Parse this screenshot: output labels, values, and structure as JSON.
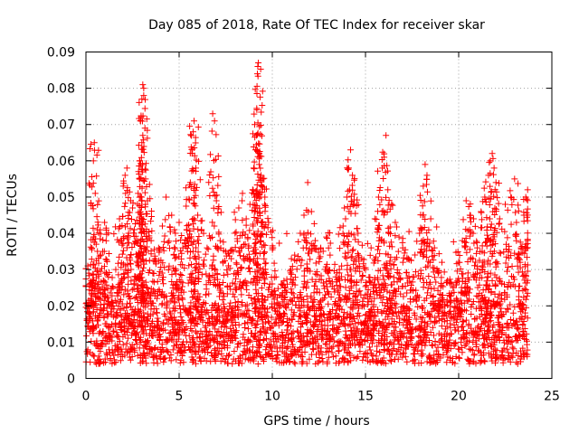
{
  "chart_data": {
    "type": "scatter",
    "title": "Day 085 of 2018, Rate Of TEC Index for receiver skar",
    "xlabel": "GPS time / hours",
    "ylabel": "ROTI / TECUs",
    "xlim": [
      0,
      25
    ],
    "ylim": [
      0,
      0.09
    ],
    "grid": true,
    "marker": "+",
    "color": "#ff0000",
    "x_ticks": [
      {
        "value": 0,
        "label": "0"
      },
      {
        "value": 5,
        "label": "5"
      },
      {
        "value": 10,
        "label": "10"
      },
      {
        "value": 15,
        "label": "15"
      },
      {
        "value": 20,
        "label": "20"
      },
      {
        "value": 25,
        "label": "25"
      }
    ],
    "y_ticks": [
      {
        "value": 0,
        "label": "0"
      },
      {
        "value": 0.01,
        "label": "0.01"
      },
      {
        "value": 0.02,
        "label": "0.02"
      },
      {
        "value": 0.03,
        "label": "0.03"
      },
      {
        "value": 0.04,
        "label": "0.04"
      },
      {
        "value": 0.05,
        "label": "0.05"
      },
      {
        "value": 0.06,
        "label": "0.06"
      },
      {
        "value": 0.07,
        "label": "0.07"
      },
      {
        "value": 0.08,
        "label": "0.08"
      },
      {
        "value": 0.09,
        "label": "0.09"
      }
    ],
    "series": [
      {
        "name": "ROTI",
        "x_range": [
          0,
          23.7
        ],
        "baseline_range": [
          0.004,
          0.02
        ],
        "points": [
          [
            0.05,
            0.016
          ],
          [
            0.1,
            0.031
          ],
          [
            0.15,
            0.029
          ],
          [
            0.3,
            0.021
          ],
          [
            0.4,
            0.06
          ],
          [
            0.45,
            0.065
          ],
          [
            0.5,
            0.051
          ],
          [
            0.55,
            0.037
          ],
          [
            0.6,
            0.041
          ],
          [
            0.8,
            0.034
          ],
          [
            0.9,
            0.035
          ],
          [
            1.0,
            0.043
          ],
          [
            1.2,
            0.028
          ],
          [
            1.4,
            0.021
          ],
          [
            1.6,
            0.03
          ],
          [
            1.8,
            0.044
          ],
          [
            2.0,
            0.053
          ],
          [
            2.1,
            0.056
          ],
          [
            2.2,
            0.058
          ],
          [
            2.4,
            0.049
          ],
          [
            2.5,
            0.047
          ],
          [
            2.6,
            0.041
          ],
          [
            2.8,
            0.051
          ],
          [
            2.9,
            0.055
          ],
          [
            3.0,
            0.065
          ],
          [
            3.05,
            0.067
          ],
          [
            3.0,
            0.077
          ],
          [
            3.05,
            0.081
          ],
          [
            3.1,
            0.08
          ],
          [
            3.1,
            0.078
          ],
          [
            3.2,
            0.055
          ],
          [
            3.3,
            0.049
          ],
          [
            3.5,
            0.038
          ],
          [
            3.7,
            0.033
          ],
          [
            3.9,
            0.036
          ],
          [
            4.1,
            0.042
          ],
          [
            4.3,
            0.05
          ],
          [
            4.6,
            0.045
          ],
          [
            4.8,
            0.04
          ],
          [
            5.0,
            0.043
          ],
          [
            5.2,
            0.036
          ],
          [
            5.4,
            0.041
          ],
          [
            5.6,
            0.054
          ],
          [
            5.7,
            0.062
          ],
          [
            5.75,
            0.068
          ],
          [
            5.8,
            0.071
          ],
          [
            5.9,
            0.058
          ],
          [
            6.0,
            0.045
          ],
          [
            6.2,
            0.041
          ],
          [
            6.5,
            0.036
          ],
          [
            6.8,
            0.073
          ],
          [
            6.9,
            0.071
          ],
          [
            7.0,
            0.049
          ],
          [
            7.2,
            0.038
          ],
          [
            7.5,
            0.035
          ],
          [
            7.8,
            0.033
          ],
          [
            8.0,
            0.04
          ],
          [
            8.2,
            0.047
          ],
          [
            8.4,
            0.051
          ],
          [
            8.6,
            0.044
          ],
          [
            8.8,
            0.048
          ],
          [
            9.0,
            0.058
          ],
          [
            9.1,
            0.063
          ],
          [
            9.15,
            0.067
          ],
          [
            9.2,
            0.084
          ],
          [
            9.22,
            0.086
          ],
          [
            9.25,
            0.087
          ],
          [
            9.3,
            0.062
          ],
          [
            9.4,
            0.056
          ],
          [
            9.5,
            0.055
          ],
          [
            9.6,
            0.05
          ],
          [
            9.8,
            0.043
          ],
          [
            10.0,
            0.036
          ],
          [
            10.2,
            0.028
          ],
          [
            10.5,
            0.023
          ],
          [
            10.8,
            0.026
          ],
          [
            11.0,
            0.03
          ],
          [
            11.2,
            0.034
          ],
          [
            11.5,
            0.04
          ],
          [
            11.7,
            0.045
          ],
          [
            11.9,
            0.054
          ],
          [
            12.1,
            0.046
          ],
          [
            12.3,
            0.038
          ],
          [
            12.6,
            0.036
          ],
          [
            12.9,
            0.039
          ],
          [
            13.1,
            0.034
          ],
          [
            13.4,
            0.028
          ],
          [
            13.6,
            0.03
          ],
          [
            13.8,
            0.042
          ],
          [
            14.0,
            0.05
          ],
          [
            14.1,
            0.058
          ],
          [
            14.2,
            0.063
          ],
          [
            14.3,
            0.056
          ],
          [
            14.4,
            0.048
          ],
          [
            14.6,
            0.04
          ],
          [
            14.8,
            0.033
          ],
          [
            15.0,
            0.03
          ],
          [
            15.3,
            0.036
          ],
          [
            15.5,
            0.044
          ],
          [
            15.7,
            0.05
          ],
          [
            15.9,
            0.058
          ],
          [
            16.0,
            0.061
          ],
          [
            16.1,
            0.067
          ],
          [
            16.2,
            0.052
          ],
          [
            16.4,
            0.048
          ],
          [
            16.6,
            0.043
          ],
          [
            16.8,
            0.039
          ],
          [
            17.0,
            0.036
          ],
          [
            17.3,
            0.033
          ],
          [
            17.6,
            0.028
          ],
          [
            17.9,
            0.04
          ],
          [
            18.1,
            0.053
          ],
          [
            18.2,
            0.059
          ],
          [
            18.3,
            0.056
          ],
          [
            18.5,
            0.044
          ],
          [
            18.7,
            0.036
          ],
          [
            18.9,
            0.029
          ],
          [
            19.1,
            0.032
          ],
          [
            19.4,
            0.027
          ],
          [
            19.7,
            0.025
          ],
          [
            20.0,
            0.032
          ],
          [
            20.2,
            0.038
          ],
          [
            20.4,
            0.049
          ],
          [
            20.6,
            0.045
          ],
          [
            20.8,
            0.044
          ],
          [
            21.0,
            0.036
          ],
          [
            21.2,
            0.046
          ],
          [
            21.4,
            0.05
          ],
          [
            21.6,
            0.056
          ],
          [
            21.7,
            0.06
          ],
          [
            21.8,
            0.062
          ],
          [
            21.9,
            0.058
          ],
          [
            22.0,
            0.054
          ],
          [
            22.2,
            0.044
          ],
          [
            22.5,
            0.048
          ],
          [
            22.8,
            0.05
          ],
          [
            23.0,
            0.055
          ],
          [
            23.1,
            0.043
          ],
          [
            23.3,
            0.032
          ],
          [
            23.5,
            0.045
          ],
          [
            23.6,
            0.05
          ],
          [
            23.7,
            0.052
          ]
        ]
      }
    ]
  }
}
